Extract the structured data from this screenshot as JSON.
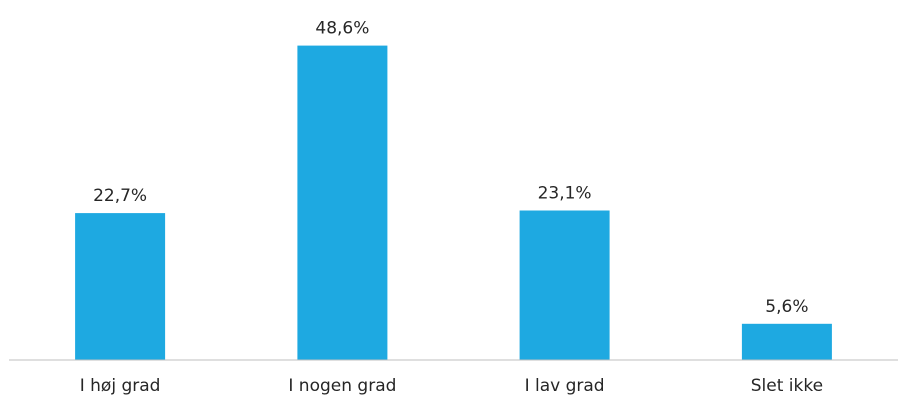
{
  "chart_data": {
    "type": "bar",
    "categories": [
      "I høj grad",
      "I nogen grad",
      "I lav grad",
      "Slet ikke"
    ],
    "values": [
      22.7,
      48.6,
      23.1,
      5.6
    ],
    "value_labels": [
      "22,7%",
      "48,6%",
      "23,1%",
      "5,6%"
    ],
    "title": "",
    "xlabel": "",
    "ylabel": "",
    "ylim": [
      0,
      50
    ],
    "grid": false,
    "legend": "none",
    "bar_color": "#1EA9E1",
    "axis_color": "#BFBFBF",
    "text_color": "#262626"
  }
}
